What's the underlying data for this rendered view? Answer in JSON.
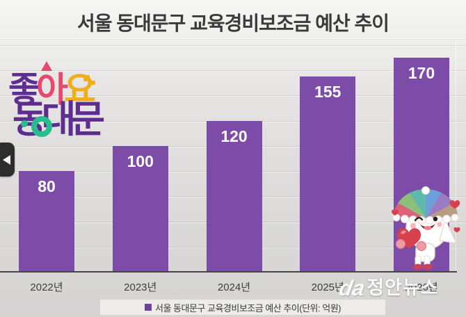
{
  "title": "서울 동대문구 교육경비보조금 예산 추이",
  "chart_data": {
    "type": "bar",
    "categories": [
      "2022년",
      "2023년",
      "2024년",
      "2025년",
      "2026년"
    ],
    "values": [
      80,
      100,
      120,
      155,
      170
    ],
    "title": "서울 동대문구 교육경비보조금 예산 추이",
    "xlabel": "",
    "ylabel": "",
    "unit": "억원",
    "ylim": [
      0,
      190
    ],
    "grid": true,
    "legend_position": "bottom",
    "bar_color": "#7d4ba8",
    "value_label_color": "#ffffff"
  },
  "legend": {
    "marker_color": "#6f42a0",
    "label": "서울 동대문구 교육경비보조금 예산 추이(단위: 억원)"
  },
  "nav": {
    "left_arrow_icon": "left-triangle"
  },
  "logo": {
    "line1": [
      "좋",
      "아",
      "요"
    ],
    "line2": "동대문",
    "colors": {
      "purple": "#5e2d92",
      "pink": "#e8486d",
      "yellow": "#f0ad1e",
      "green": "#27bd8c"
    }
  },
  "watermark": {
    "logo_glyph": "da",
    "text": "정안뉴스"
  },
  "colors": {
    "background_top": "#f6f6f5",
    "background_bottom": "#d5d4d3",
    "axis": "#454545",
    "title_text": "#3b3b3b",
    "mascot_heart": "#d7414e"
  }
}
